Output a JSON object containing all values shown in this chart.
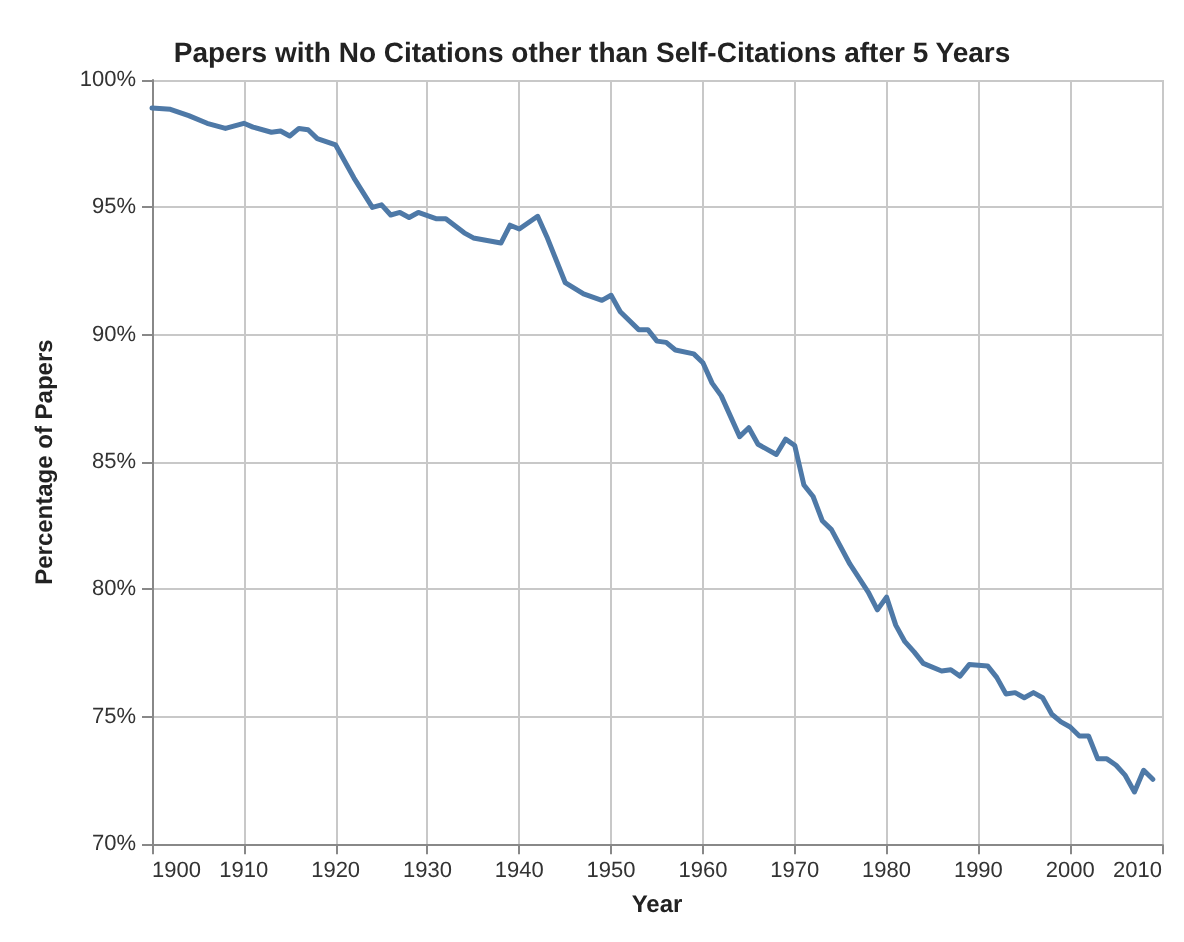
{
  "chart_data": {
    "type": "line",
    "title": "Papers with No Citations other than Self-Citations after 5 Years",
    "xlabel": "Year",
    "ylabel": "Percentage of Papers",
    "x": [
      1900,
      1902,
      1904,
      1906,
      1908,
      1910,
      1911,
      1913,
      1914,
      1915,
      1916,
      1917,
      1918,
      1920,
      1922,
      1924,
      1925,
      1926,
      1927,
      1928,
      1929,
      1931,
      1932,
      1934,
      1935,
      1938,
      1939,
      1940,
      1942,
      1943,
      1945,
      1947,
      1949,
      1950,
      1951,
      1953,
      1954,
      1955,
      1956,
      1957,
      1959,
      1960,
      1961,
      1962,
      1964,
      1965,
      1966,
      1968,
      1969,
      1970,
      1971,
      1972,
      1973,
      1974,
      1976,
      1978,
      1979,
      1980,
      1981,
      1982,
      1983,
      1984,
      1986,
      1987,
      1988,
      1989,
      1991,
      1992,
      1993,
      1994,
      1995,
      1996,
      1997,
      1998,
      1999,
      2000,
      2001,
      2002,
      2003,
      2004,
      2005,
      2006,
      2007,
      2008,
      2009
    ],
    "series": [
      {
        "color": "#4e79a7",
        "values": [
          98.9,
          98.85,
          98.6,
          98.3,
          98.1,
          98.3,
          98.15,
          97.95,
          98.0,
          97.8,
          98.1,
          98.05,
          97.7,
          97.45,
          96.15,
          95.0,
          95.1,
          94.7,
          94.8,
          94.6,
          94.8,
          94.55,
          94.55,
          94.0,
          93.8,
          93.6,
          94.3,
          94.15,
          94.65,
          93.85,
          92.05,
          91.6,
          91.35,
          91.55,
          90.9,
          90.2,
          90.2,
          89.75,
          89.7,
          89.4,
          89.25,
          88.9,
          88.1,
          87.6,
          86.0,
          86.35,
          85.7,
          85.3,
          85.9,
          85.65,
          84.1,
          83.65,
          82.7,
          82.35,
          81.0,
          79.9,
          79.2,
          79.7,
          78.6,
          77.95,
          77.55,
          77.1,
          76.8,
          76.85,
          76.6,
          77.05,
          77.0,
          76.55,
          75.9,
          75.95,
          75.75,
          75.95,
          75.75,
          75.1,
          74.8,
          74.6,
          74.25,
          74.25,
          73.35,
          73.35,
          73.1,
          72.7,
          72.05,
          72.9,
          72.55
        ]
      }
    ],
    "xlim": [
      1900,
      2010
    ],
    "xticks": [
      1900,
      1910,
      1920,
      1930,
      1940,
      1950,
      1960,
      1970,
      1980,
      1990,
      2000,
      2010
    ],
    "ylim": [
      70,
      100
    ],
    "yticks": [
      {
        "value": 70,
        "label": "70%"
      },
      {
        "value": 75,
        "label": "75%"
      },
      {
        "value": 80,
        "label": "80%"
      },
      {
        "value": 85,
        "label": "85%"
      },
      {
        "value": 90,
        "label": "90%"
      },
      {
        "value": 95,
        "label": "95%"
      },
      {
        "value": 100,
        "label": "100%"
      }
    ],
    "grid": true,
    "marker": "none",
    "line_style": "solid"
  }
}
